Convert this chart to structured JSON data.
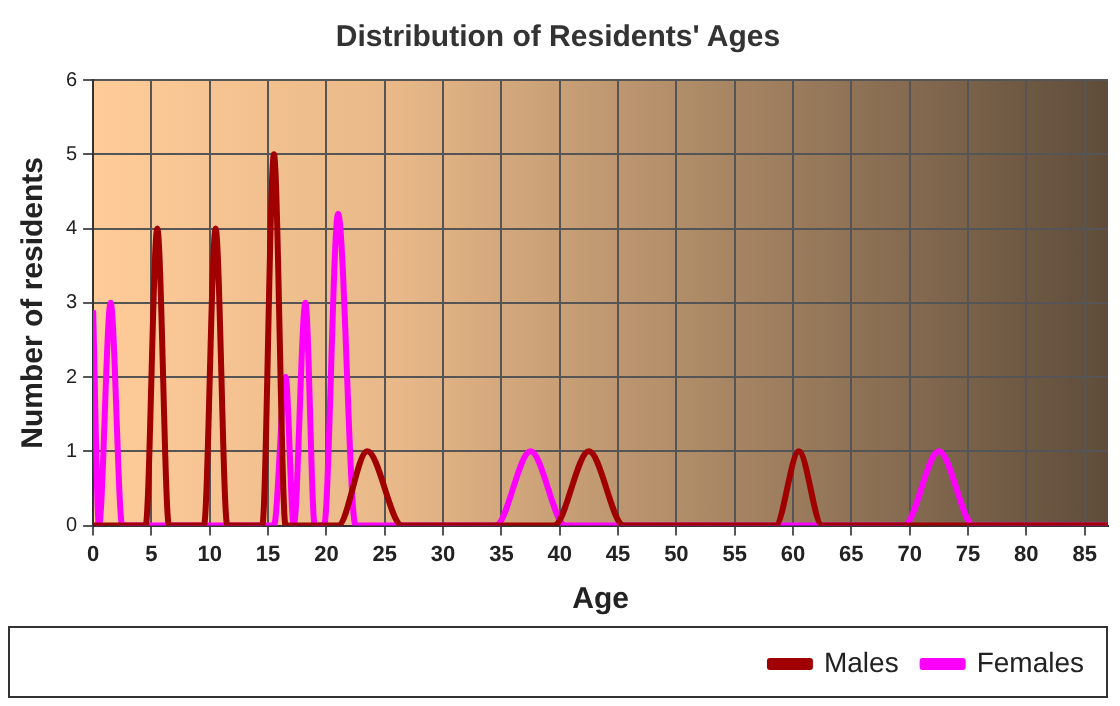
{
  "chart_data": {
    "type": "line",
    "title": "Distribution of Residents' Ages",
    "xlabel": "Age",
    "ylabel": "Number of residents",
    "xlim": [
      0,
      87
    ],
    "xticks": [
      0,
      5,
      10,
      15,
      20,
      25,
      30,
      35,
      40,
      45,
      50,
      55,
      60,
      65,
      70,
      75,
      80,
      85
    ],
    "ylim": [
      0,
      6
    ],
    "yticks": [
      0,
      1,
      2,
      3,
      4,
      5,
      6
    ],
    "grid": true,
    "legend": "bottom right",
    "marker": "none",
    "series": [
      {
        "name": "Males",
        "color": "#a00000",
        "x": [
          0,
          4.5,
          5.5,
          6.5,
          9.5,
          10.5,
          11.5,
          14.5,
          15.5,
          16.5,
          21,
          23.5,
          26.5,
          39.5,
          42.5,
          45.5,
          58.5,
          60.5,
          62.5,
          87
        ],
        "values": [
          0,
          0,
          4,
          0,
          0,
          4,
          0,
          0,
          5,
          0,
          0,
          1,
          0,
          0,
          1,
          0,
          0,
          1,
          0,
          0
        ]
      },
      {
        "name": "Females",
        "color": "#ff00ff",
        "x": [
          0,
          0.5,
          1.5,
          2.5,
          15.5,
          16.5,
          17.2,
          18.2,
          19,
          19.8,
          21,
          22.5,
          34.5,
          37.5,
          40.5,
          69.5,
          72.5,
          75.5,
          87
        ],
        "values": [
          2.9,
          0,
          3,
          0,
          0,
          2,
          0,
          3,
          0,
          0,
          4.2,
          0,
          0,
          1,
          0,
          0,
          1,
          0,
          0
        ]
      }
    ]
  }
}
